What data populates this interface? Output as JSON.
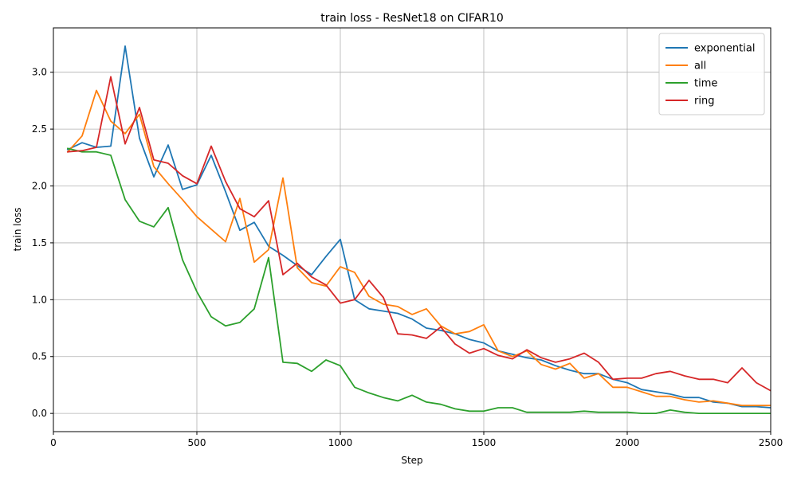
{
  "chart_data": {
    "type": "line",
    "title": "train loss - ResNet18 on CIFAR10",
    "xlabel": "Step",
    "ylabel": "train loss",
    "xlim": [
      0,
      2500
    ],
    "ylim": [
      -0.16,
      3.39
    ],
    "xticks": [
      0,
      500,
      1000,
      1500,
      2000,
      2500
    ],
    "yticks": [
      0.0,
      0.5,
      1.0,
      1.5,
      2.0,
      2.5,
      3.0
    ],
    "xtick_labels": [
      "0",
      "500",
      "1000",
      "1500",
      "2000",
      "2500"
    ],
    "ytick_labels": [
      "0.0",
      "0.5",
      "1.0",
      "1.5",
      "2.0",
      "2.5",
      "3.0"
    ],
    "grid": true,
    "legend_position": "top-right",
    "x": [
      50,
      100,
      150,
      200,
      250,
      300,
      350,
      400,
      450,
      500,
      550,
      600,
      650,
      700,
      750,
      800,
      850,
      900,
      950,
      1000,
      1050,
      1100,
      1150,
      1200,
      1250,
      1300,
      1350,
      1400,
      1450,
      1500,
      1550,
      1600,
      1650,
      1700,
      1750,
      1800,
      1850,
      1900,
      1950,
      2000,
      2050,
      2100,
      2150,
      2200,
      2250,
      2300,
      2350,
      2400,
      2450,
      2500
    ],
    "series": [
      {
        "name": "exponential",
        "color": "#1f77b4",
        "values": [
          2.32,
          2.38,
          2.34,
          2.35,
          3.23,
          2.42,
          2.08,
          2.36,
          1.97,
          2.01,
          2.27,
          1.95,
          1.61,
          1.68,
          1.47,
          1.39,
          1.3,
          1.22,
          1.38,
          1.53,
          1.0,
          0.92,
          0.9,
          0.88,
          0.83,
          0.75,
          0.73,
          0.7,
          0.65,
          0.62,
          0.55,
          0.52,
          0.49,
          0.47,
          0.42,
          0.38,
          0.35,
          0.35,
          0.3,
          0.27,
          0.21,
          0.19,
          0.17,
          0.14,
          0.14,
          0.1,
          0.09,
          0.06,
          0.06,
          0.05
        ]
      },
      {
        "name": "all",
        "color": "#ff7f0e",
        "values": [
          2.3,
          2.44,
          2.84,
          2.57,
          2.46,
          2.63,
          2.17,
          2.02,
          1.88,
          1.73,
          1.62,
          1.51,
          1.89,
          1.33,
          1.44,
          2.07,
          1.28,
          1.15,
          1.12,
          1.29,
          1.24,
          1.03,
          0.96,
          0.94,
          0.87,
          0.92,
          0.77,
          0.7,
          0.72,
          0.78,
          0.55,
          0.5,
          0.55,
          0.43,
          0.39,
          0.44,
          0.31,
          0.35,
          0.23,
          0.23,
          0.19,
          0.15,
          0.15,
          0.12,
          0.1,
          0.11,
          0.09,
          0.07,
          0.07,
          0.07
        ]
      },
      {
        "name": "time",
        "color": "#2ca02c",
        "values": [
          2.33,
          2.3,
          2.3,
          2.27,
          1.88,
          1.69,
          1.64,
          1.81,
          1.35,
          1.07,
          0.85,
          0.77,
          0.8,
          0.92,
          1.37,
          0.45,
          0.44,
          0.37,
          0.47,
          0.42,
          0.23,
          0.18,
          0.14,
          0.11,
          0.16,
          0.1,
          0.08,
          0.04,
          0.02,
          0.02,
          0.05,
          0.05,
          0.01,
          0.01,
          0.01,
          0.01,
          0.02,
          0.01,
          0.01,
          0.01,
          0.0,
          0.0,
          0.03,
          0.01,
          0.0,
          0.0,
          0.0,
          0.0,
          0.0,
          0.0
        ]
      },
      {
        "name": "ring",
        "color": "#d62728",
        "values": [
          2.3,
          2.31,
          2.34,
          2.96,
          2.37,
          2.69,
          2.23,
          2.2,
          2.09,
          2.02,
          2.35,
          2.04,
          1.8,
          1.73,
          1.87,
          1.22,
          1.32,
          1.2,
          1.13,
          0.97,
          1.0,
          1.17,
          1.02,
          0.7,
          0.69,
          0.66,
          0.76,
          0.61,
          0.53,
          0.57,
          0.51,
          0.48,
          0.56,
          0.49,
          0.45,
          0.48,
          0.53,
          0.45,
          0.3,
          0.31,
          0.31,
          0.35,
          0.37,
          0.33,
          0.3,
          0.3,
          0.27,
          0.4,
          0.27,
          0.2
        ]
      }
    ]
  }
}
